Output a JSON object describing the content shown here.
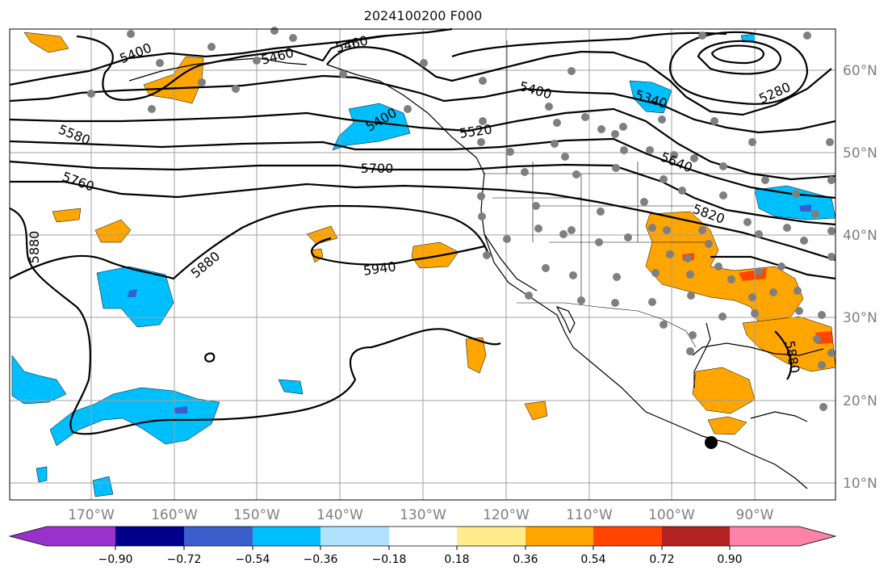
{
  "title": "2024100200 F000",
  "map": {
    "lon_labels": [
      "170°W",
      "160°W",
      "150°W",
      "140°W",
      "130°W",
      "120°W",
      "110°W",
      "100°W",
      "90°W"
    ],
    "lat_labels": [
      "60°N",
      "50°N",
      "40°N",
      "30°N",
      "20°N",
      "10°N"
    ],
    "contour_labels": [
      "5400",
      "5460",
      "5460",
      "5400",
      "5340",
      "5280",
      "5580",
      "5400",
      "5520",
      "5700",
      "5640",
      "5760",
      "5820",
      "5880",
      "5880",
      "5940",
      "5880"
    ],
    "colors": {
      "gridline": "#a0a0a0",
      "station_dot": "#7f7f7f",
      "contour": "#000000"
    }
  },
  "colorbar": {
    "tick_labels": [
      "−0.90",
      "−0.72",
      "−0.54",
      "−0.36",
      "−0.18",
      "0.18",
      "0.36",
      "0.54",
      "0.72",
      "0.90"
    ],
    "colors": [
      "#9932cc",
      "#00008b",
      "#3a5fcd",
      "#00bfff",
      "#b0e2ff",
      "#ffffff",
      "#ffec8b",
      "#ffa500",
      "#ff4500",
      "#b22222",
      "#ff82ab"
    ]
  }
}
